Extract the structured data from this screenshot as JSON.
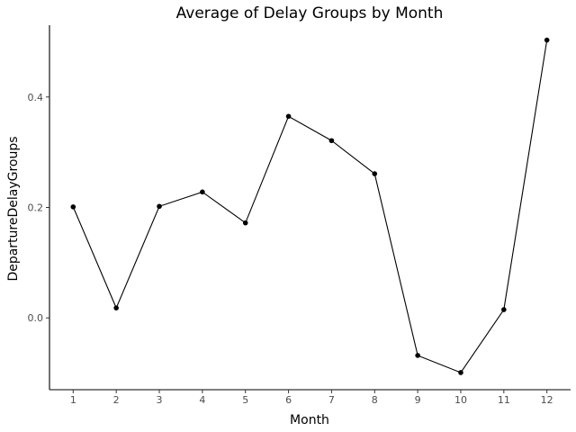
{
  "chart_data": {
    "type": "line",
    "title": "Average of Delay Groups by Month",
    "xlabel": "Month",
    "ylabel": "DepartureDelayGroups",
    "x": [
      1,
      2,
      3,
      4,
      5,
      6,
      7,
      8,
      9,
      10,
      11,
      12
    ],
    "y": [
      0.201,
      0.018,
      0.202,
      0.228,
      0.172,
      0.365,
      0.321,
      0.261,
      -0.068,
      -0.099,
      0.015,
      0.503
    ],
    "x_ticks": [
      "1",
      "2",
      "3",
      "4",
      "5",
      "6",
      "7",
      "8",
      "9",
      "10",
      "11",
      "12"
    ],
    "y_ticks": [
      "0.0",
      "0.2",
      "0.4"
    ],
    "xlim": [
      0.45,
      12.55
    ],
    "ylim": [
      -0.13,
      0.53
    ],
    "grid": false,
    "legend": "none",
    "colors": {
      "line": "#000000",
      "point": "#000000",
      "axis": "#000000"
    }
  }
}
